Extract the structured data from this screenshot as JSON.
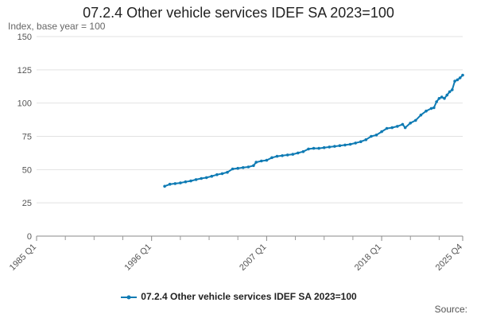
{
  "chart_data": {
    "type": "line",
    "title": "07.2.4 Other vehicle services IDEF SA 2023=100",
    "ylabel": "Index, base year = 100",
    "xlabel": "",
    "ylim": [
      0,
      150
    ],
    "y_ticks": [
      0,
      25,
      50,
      75,
      100,
      125,
      150
    ],
    "x_range": [
      1985.0,
      2025.75
    ],
    "x_tick_labels": [
      {
        "label": "1985 Q1",
        "x": 1985.0
      },
      {
        "label": "1996 Q1",
        "x": 1996.0
      },
      {
        "label": "2007 Q1",
        "x": 2007.0
      },
      {
        "label": "2018 Q1",
        "x": 2018.0
      },
      {
        "label": "2025 Q4",
        "x": 2025.75
      }
    ],
    "x_minor_ticks": [
      1987.75,
      1990.5,
      1993.25,
      1998.75,
      2001.5,
      2004.25,
      2009.75,
      2012.5,
      2015.25,
      2020.75,
      2023.5
    ],
    "legend_position": "bottom",
    "series": [
      {
        "name": "07.2.4 Other vehicle services IDEF SA 2023=100",
        "color": "#0f7bb4",
        "points": [
          [
            1997.25,
            37.5
          ],
          [
            1997.75,
            39.0
          ],
          [
            1998.25,
            39.5
          ],
          [
            1998.75,
            40.0
          ],
          [
            1999.25,
            40.8
          ],
          [
            1999.75,
            41.5
          ],
          [
            2000.25,
            42.5
          ],
          [
            2000.75,
            43.3
          ],
          [
            2001.25,
            44.0
          ],
          [
            2001.75,
            45.0
          ],
          [
            2002.25,
            46.2
          ],
          [
            2002.75,
            47.0
          ],
          [
            2003.25,
            48.0
          ],
          [
            2003.75,
            50.5
          ],
          [
            2004.25,
            51.0
          ],
          [
            2004.75,
            51.5
          ],
          [
            2005.25,
            52.0
          ],
          [
            2005.75,
            53.0
          ],
          [
            2006.0,
            55.5
          ],
          [
            2006.5,
            56.5
          ],
          [
            2007.0,
            57.0
          ],
          [
            2007.5,
            59.0
          ],
          [
            2008.0,
            60.0
          ],
          [
            2008.5,
            60.5
          ],
          [
            2009.0,
            61.0
          ],
          [
            2009.5,
            61.5
          ],
          [
            2010.0,
            62.5
          ],
          [
            2010.5,
            63.5
          ],
          [
            2011.0,
            65.5
          ],
          [
            2011.5,
            66.0
          ],
          [
            2012.0,
            66.0
          ],
          [
            2012.5,
            66.5
          ],
          [
            2013.0,
            67.0
          ],
          [
            2013.5,
            67.5
          ],
          [
            2014.0,
            68.0
          ],
          [
            2014.5,
            68.5
          ],
          [
            2015.0,
            69.0
          ],
          [
            2015.5,
            70.0
          ],
          [
            2016.0,
            71.0
          ],
          [
            2016.5,
            72.5
          ],
          [
            2017.0,
            75.0
          ],
          [
            2017.5,
            76.0
          ],
          [
            2018.0,
            78.5
          ],
          [
            2018.5,
            81.0
          ],
          [
            2019.0,
            81.5
          ],
          [
            2019.5,
            82.5
          ],
          [
            2020.0,
            84.0
          ],
          [
            2020.25,
            81.5
          ],
          [
            2020.75,
            85.0
          ],
          [
            2021.25,
            87.0
          ],
          [
            2021.75,
            91.0
          ],
          [
            2022.25,
            94.0
          ],
          [
            2022.75,
            96.0
          ],
          [
            2023.0,
            96.5
          ],
          [
            2023.25,
            101.0
          ],
          [
            2023.5,
            103.5
          ],
          [
            2023.75,
            104.5
          ],
          [
            2024.0,
            103.5
          ],
          [
            2024.25,
            106.0
          ],
          [
            2024.5,
            108.5
          ],
          [
            2024.75,
            110.0
          ],
          [
            2025.0,
            116.5
          ],
          [
            2025.25,
            117.5
          ],
          [
            2025.5,
            119.0
          ],
          [
            2025.75,
            121.0
          ]
        ]
      }
    ],
    "source_label": "Source:"
  }
}
